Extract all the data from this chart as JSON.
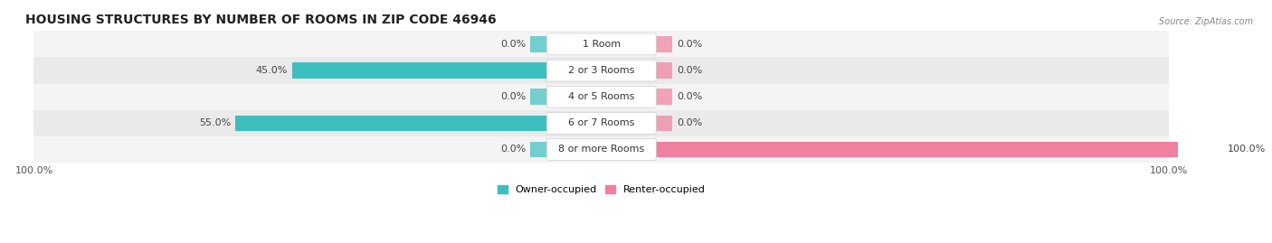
{
  "title": "HOUSING STRUCTURES BY NUMBER OF ROOMS IN ZIP CODE 46946",
  "source": "Source: ZipAtlas.com",
  "categories": [
    "1 Room",
    "2 or 3 Rooms",
    "4 or 5 Rooms",
    "6 or 7 Rooms",
    "8 or more Rooms"
  ],
  "owner_values": [
    0.0,
    45.0,
    0.0,
    55.0,
    0.0
  ],
  "renter_values": [
    0.0,
    0.0,
    0.0,
    0.0,
    100.0
  ],
  "owner_color": "#3dbfbf",
  "renter_color": "#f080a0",
  "row_bg_light": "#f4f4f4",
  "row_bg_dark": "#eaeaea",
  "title_fontsize": 10,
  "label_fontsize": 8,
  "tick_fontsize": 8,
  "source_fontsize": 7,
  "xlim": 100,
  "stub_size": 3.0,
  "legend_owner": "Owner-occupied",
  "legend_renter": "Renter-occupied"
}
